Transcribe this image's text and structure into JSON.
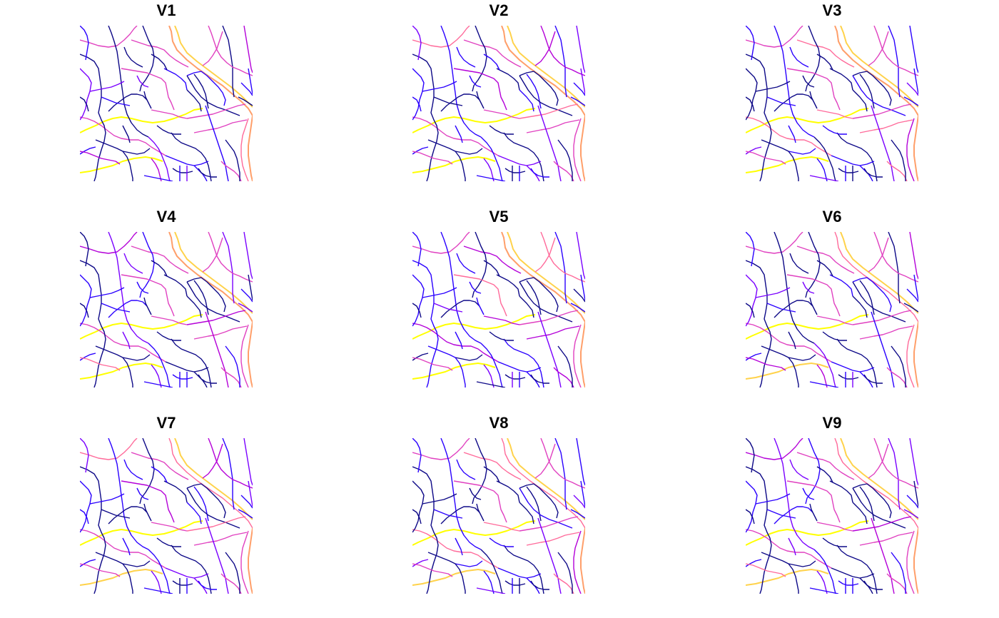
{
  "panels": [
    {
      "title": "V1",
      "variant": 1
    },
    {
      "title": "V2",
      "variant": 2
    },
    {
      "title": "V3",
      "variant": 3
    },
    {
      "title": "V4",
      "variant": 4
    },
    {
      "title": "V5",
      "variant": 5
    },
    {
      "title": "V6",
      "variant": 6
    },
    {
      "title": "V7",
      "variant": 7
    },
    {
      "title": "V8",
      "variant": 8
    },
    {
      "title": "V9",
      "variant": 9
    }
  ],
  "palette": [
    "#0d0887",
    "#2a00ff",
    "#7a00ff",
    "#b400d8",
    "#e040c0",
    "#ff6a9a",
    "#ff9f6a",
    "#ffd24a",
    "#ffff00"
  ],
  "background": "#ffffff"
}
